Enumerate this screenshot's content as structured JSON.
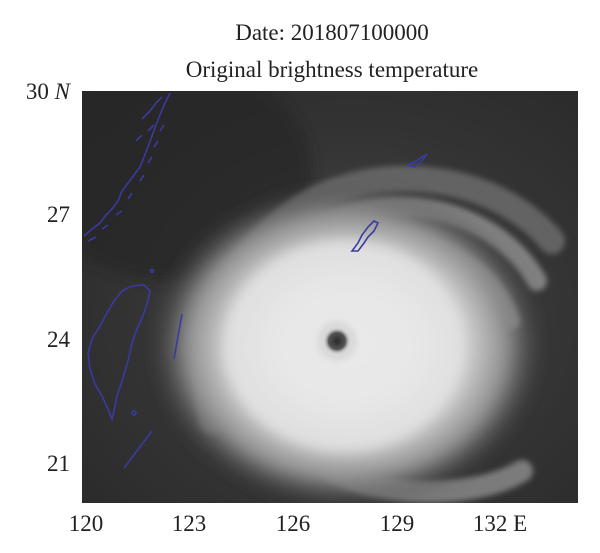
{
  "title": {
    "line1": "Date: 201807100000",
    "line2": "Original brightness temperature"
  },
  "axes": {
    "y_ticks": [
      {
        "value": "30",
        "suffix": "N"
      },
      {
        "value": "27",
        "suffix": ""
      },
      {
        "value": "24",
        "suffix": ""
      },
      {
        "value": "21",
        "suffix": ""
      }
    ],
    "x_ticks": [
      "120",
      "123",
      "126",
      "129",
      "132 E"
    ],
    "lat_range": [
      20,
      30
    ],
    "lon_range": [
      120,
      135
    ]
  },
  "image": {
    "subject": "typhoon satellite infrared imagery",
    "colormap": "grayscale",
    "coastline_color": "#3a3aa0"
  }
}
